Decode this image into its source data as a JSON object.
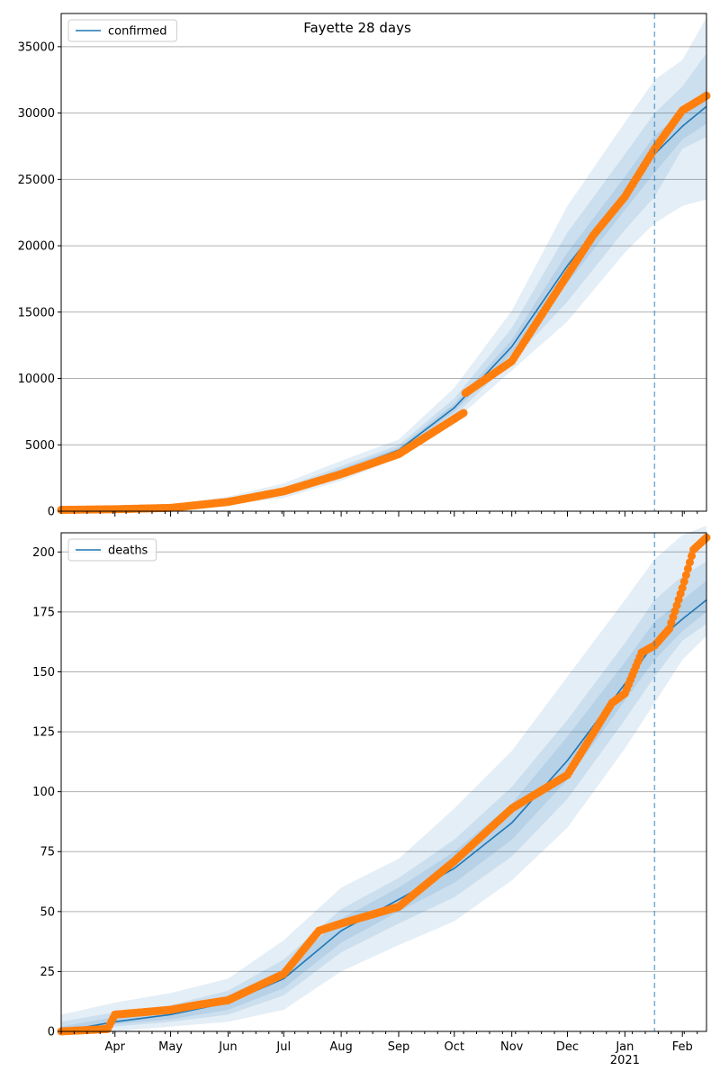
{
  "figure": {
    "title": "Fayette 28 days"
  },
  "colors": {
    "model_line": "#1f77b4",
    "observed_points": "#ff7f0e",
    "band": "#1f77b4",
    "forecast_marker": "#1f77b4",
    "grid": "#b0b0b0"
  },
  "chart_data": [
    {
      "type": "line",
      "panel": "top",
      "legend": "top-left",
      "grid": "y",
      "legend_label": "confirmed",
      "ylim": [
        0,
        37500
      ],
      "yticks": [
        0,
        5000,
        10000,
        15000,
        20000,
        25000,
        30000,
        35000
      ],
      "xlim": [
        "2020-03-03",
        "2021-02-14"
      ],
      "x_month_ticks": [
        {
          "date": "2020-04-01",
          "label": "Apr"
        },
        {
          "date": "2020-05-01",
          "label": "May"
        },
        {
          "date": "2020-06-01",
          "label": "Jun"
        },
        {
          "date": "2020-07-01",
          "label": "Jul"
        },
        {
          "date": "2020-08-01",
          "label": "Aug"
        },
        {
          "date": "2020-09-01",
          "label": "Sep"
        },
        {
          "date": "2020-10-01",
          "label": "Oct"
        },
        {
          "date": "2020-11-01",
          "label": "Nov"
        },
        {
          "date": "2020-12-01",
          "label": "Dec"
        },
        {
          "date": "2021-01-01",
          "label": "Jan"
        },
        {
          "date": "2021-02-01",
          "label": "Feb"
        }
      ],
      "x_year_label": {
        "date": "2021-01-01",
        "label": "2021"
      },
      "forecast_start": "2021-01-17",
      "model": {
        "x": [
          "2020-03-03",
          "2020-04-01",
          "2020-05-01",
          "2020-06-01",
          "2020-07-01",
          "2020-08-01",
          "2020-09-01",
          "2020-10-01",
          "2020-11-01",
          "2020-12-01",
          "2021-01-01",
          "2021-01-17",
          "2021-02-01",
          "2021-02-14"
        ],
        "y": [
          0,
          100,
          220,
          700,
          1500,
          3000,
          4600,
          7800,
          12400,
          18500,
          24000,
          26900,
          29000,
          30500
        ],
        "bands": [
          {
            "lower": [
              0,
              50,
              100,
              500,
              1000,
              2300,
              4000,
              6800,
              10600,
              14300,
              19500,
              21700,
              23000,
              23500
            ],
            "upper": [
              0,
              300,
              500,
              1100,
              2100,
              3800,
              5400,
              9300,
              15100,
              23000,
              29300,
              32500,
              34000,
              37200
            ]
          },
          {
            "lower": [
              0,
              70,
              150,
              600,
              1200,
              2600,
              4200,
              7200,
              11300,
              15800,
              21200,
              23700,
              27300,
              28200
            ],
            "upper": [
              0,
              200,
              380,
              900,
              1800,
              3400,
              5000,
              8500,
              13800,
              21000,
              26900,
              30000,
              32000,
              34500
            ]
          },
          {
            "lower": [
              0,
              85,
              180,
              650,
              1350,
              2800,
              4400,
              7500,
              11900,
              17200,
              22700,
              25500,
              28000,
              29200
            ],
            "upper": [
              0,
              140,
              280,
              800,
              1650,
              3200,
              4800,
              8100,
              12900,
              19500,
              25200,
              28300,
              30100,
              31800
            ]
          }
        ]
      },
      "observed": {
        "x": [
          "2020-03-03",
          "2020-04-01",
          "2020-05-01",
          "2020-06-01",
          "2020-07-01",
          "2020-08-01",
          "2020-09-01",
          "2020-10-06",
          "2020-10-07",
          "2020-11-01",
          "2020-12-01",
          "2020-12-15",
          "2021-01-01",
          "2021-01-17",
          "2021-02-01",
          "2021-02-14"
        ],
        "y": [
          100,
          150,
          250,
          700,
          1500,
          2800,
          4300,
          7400,
          8900,
          11300,
          17800,
          20800,
          23700,
          27300,
          30200,
          31300
        ]
      }
    },
    {
      "type": "line",
      "panel": "bottom",
      "legend": "top-left",
      "grid": "y",
      "legend_label": "deaths",
      "ylim": [
        0,
        208
      ],
      "yticks": [
        0,
        25,
        50,
        75,
        100,
        125,
        150,
        175,
        200
      ],
      "xlim": [
        "2020-03-03",
        "2021-02-14"
      ],
      "x_month_ticks": [
        {
          "date": "2020-04-01",
          "label": "Apr"
        },
        {
          "date": "2020-05-01",
          "label": "May"
        },
        {
          "date": "2020-06-01",
          "label": "Jun"
        },
        {
          "date": "2020-07-01",
          "label": "Jul"
        },
        {
          "date": "2020-08-01",
          "label": "Aug"
        },
        {
          "date": "2020-09-01",
          "label": "Sep"
        },
        {
          "date": "2020-10-01",
          "label": "Oct"
        },
        {
          "date": "2020-11-01",
          "label": "Nov"
        },
        {
          "date": "2020-12-01",
          "label": "Dec"
        },
        {
          "date": "2021-01-01",
          "label": "Jan"
        },
        {
          "date": "2021-02-01",
          "label": "Feb"
        }
      ],
      "x_year_label": {
        "date": "2021-01-01",
        "label": "2021"
      },
      "forecast_start": "2021-01-17",
      "model": {
        "x": [
          "2020-03-03",
          "2020-04-01",
          "2020-05-01",
          "2020-06-01",
          "2020-07-01",
          "2020-08-01",
          "2020-09-01",
          "2020-10-01",
          "2020-11-01",
          "2020-12-01",
          "2021-01-01",
          "2021-01-17",
          "2021-02-01",
          "2021-02-14"
        ],
        "y": [
          0,
          4,
          7,
          12,
          22,
          42,
          55,
          68,
          87,
          113,
          145,
          162,
          172,
          180
        ],
        "bands": [
          {
            "lower": [
              0,
              0,
              2,
              4,
              9,
              25,
              36,
              46,
              63,
              85,
              118,
              137,
              155,
              165
            ],
            "upper": [
              7,
              12,
              16,
              22,
              38,
              60,
              72,
              93,
              117,
              148,
              180,
              197,
              207,
              211
            ]
          },
          {
            "lower": [
              0,
              2,
              4,
              7,
              15,
              33,
              45,
              56,
              73,
              97,
              130,
              148,
              163,
              170
            ],
            "upper": [
              4,
              8,
              11,
              17,
              30,
              51,
              64,
              80,
              102,
              130,
              162,
              180,
              190,
              196
            ]
          },
          {
            "lower": [
              0,
              3,
              5,
              9,
              18,
              37,
              50,
              62,
              80,
              105,
              138,
              155,
              167,
              175
            ],
            "upper": [
              2,
              6,
              9,
              15,
              26,
              47,
              60,
              75,
              95,
              123,
              154,
              171,
              180,
              188
            ]
          }
        ]
      },
      "observed": {
        "x": [
          "2020-03-03",
          "2020-03-28",
          "2020-04-01",
          "2020-05-01",
          "2020-05-15",
          "2020-06-01",
          "2020-07-01",
          "2020-07-20",
          "2020-08-01",
          "2020-09-01",
          "2020-10-01",
          "2020-11-01",
          "2020-12-01",
          "2020-12-25",
          "2021-01-01",
          "2021-01-10",
          "2021-01-17",
          "2021-01-25",
          "2021-02-01",
          "2021-02-07",
          "2021-02-14"
        ],
        "y": [
          0,
          1,
          7,
          9,
          11,
          13,
          24,
          42,
          45,
          52,
          71,
          93,
          107,
          137,
          141,
          158,
          161,
          168,
          185,
          201,
          206
        ]
      }
    }
  ]
}
